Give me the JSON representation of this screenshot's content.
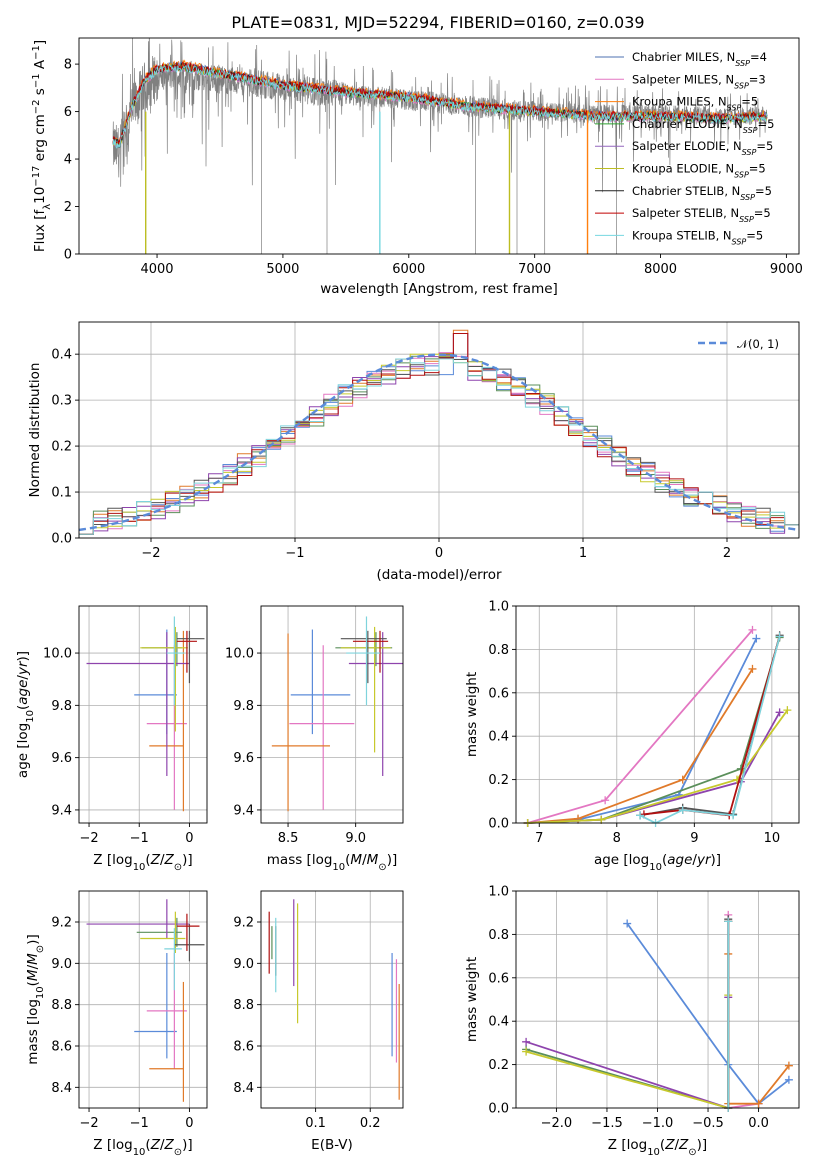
{
  "figure": {
    "title": "PLATE=0831, MJD=52294, FIBERID=0160, z=0.039"
  },
  "colors": {
    "data": "#808080",
    "model_palette": [
      "#4c72b0",
      "#e377c2",
      "#ff7f0e",
      "#2ca02c",
      "#9467bd",
      "#bcbd22",
      "#222222",
      "#c00000",
      "#76d7e0"
    ],
    "line_palette": [
      "#5b8bd9",
      "#e377c2",
      "#e07a2a",
      "#5a8f5a",
      "#8e44ad",
      "#c7c92d",
      "#555555",
      "#b01010",
      "#7fd3dc"
    ]
  },
  "chart_data": [
    {
      "id": "spectrum",
      "type": "line",
      "xlabel": "wavelength [Angstrom, rest frame]",
      "ylabel": "Flux [f_λ 10^-17 erg cm^-2 s^-1 A^-1]",
      "xlim": [
        3380,
        9100
      ],
      "ylim": [
        0,
        9.1
      ],
      "xticks": [
        4000,
        5000,
        6000,
        7000,
        8000,
        9000
      ],
      "yticks": [
        0,
        2,
        4,
        6,
        8
      ],
      "grid": false,
      "legend_position": "top-right",
      "legend": [
        {
          "name": "Chabrier MILES",
          "n": "4"
        },
        {
          "name": "Salpeter MILES",
          "n": "3"
        },
        {
          "name": "Kroupa MILES",
          "n": "5"
        },
        {
          "name": "Chabrier ELODIE",
          "n": "5"
        },
        {
          "name": "Salpeter ELODIE",
          "n": "5"
        },
        {
          "name": "Kroupa ELODIE",
          "n": "5"
        },
        {
          "name": "Chabrier STELIB",
          "n": "5"
        },
        {
          "name": "Salpeter STELIB",
          "n": "5"
        },
        {
          "name": "Kroupa STELIB",
          "n": "5"
        }
      ],
      "model_continuum": {
        "x": [
          3650,
          3700,
          3800,
          3900,
          4000,
          4200,
          4400,
          4600,
          4800,
          5000,
          5200,
          5500,
          6000,
          6500,
          7000,
          7500,
          8000,
          8500,
          8850
        ],
        "y": [
          4.8,
          4.6,
          6.2,
          7.3,
          7.8,
          7.9,
          7.7,
          7.5,
          7.3,
          7.1,
          7.0,
          6.8,
          6.6,
          6.2,
          6.0,
          5.8,
          5.8,
          5.7,
          5.8
        ]
      },
      "data_continuum": {
        "x": [
          3650,
          3700,
          3800,
          3900,
          4000,
          4200,
          4400,
          4600,
          4800,
          5000,
          5200,
          5500,
          6000,
          6500,
          7000,
          7500,
          8000,
          8500,
          8850
        ],
        "y": [
          4.5,
          4.3,
          6.0,
          7.0,
          7.5,
          7.5,
          7.4,
          7.3,
          7.2,
          7.0,
          6.9,
          6.7,
          6.5,
          6.2,
          6.0,
          5.9,
          5.9,
          5.8,
          5.8
        ]
      }
    },
    {
      "id": "residuals",
      "type": "line",
      "xlabel": "(data-model)/error",
      "ylabel": "Normed distribution",
      "xlim": [
        -2.5,
        2.5
      ],
      "ylim": [
        0,
        0.47
      ],
      "xticks": [
        -2,
        -1,
        0,
        1,
        2
      ],
      "yticks": [
        0.0,
        0.1,
        0.2,
        0.3,
        0.4
      ],
      "grid": true,
      "legend_position": "top-right",
      "legend": [
        {
          "name": "𝒩(0, 1)"
        }
      ],
      "gaussian": {
        "mean": 0,
        "sigma": 1
      }
    },
    {
      "id": "age-vs-Z",
      "type": "errorbar",
      "xlabel": "Z [log10(Z/Z⊙)]",
      "ylabel": "age  [log10(age/yr)]",
      "xlim": [
        -2.2,
        0.35
      ],
      "ylim": [
        9.35,
        10.18
      ],
      "xticks": [
        -2,
        -1,
        0
      ],
      "yticks": [
        9.4,
        9.6,
        9.8,
        10.0
      ],
      "grid": true,
      "points": [
        {
          "x": -0.45,
          "y": 9.84,
          "xerr": [
            0.65,
            0.2
          ],
          "yerr": [
            0.15,
            0.25
          ]
        },
        {
          "x": -0.3,
          "y": 9.73,
          "xerr": [
            0.55,
            0.25
          ],
          "yerr": [
            0.33,
            0.3
          ]
        },
        {
          "x": -0.12,
          "y": 9.645,
          "xerr": [
            0.68,
            0.0
          ],
          "yerr": [
            0.25,
            0.44
          ]
        },
        {
          "x": -0.25,
          "y": 10.02,
          "xerr": [
            0.7,
            0.1
          ],
          "yerr": [
            0.07,
            0.06
          ]
        },
        {
          "x": -0.45,
          "y": 9.96,
          "xerr": [
            1.6,
            0.45
          ],
          "yerr": [
            0.43,
            0.12
          ]
        },
        {
          "x": -0.28,
          "y": 10.02,
          "xerr": [
            0.7,
            0.25
          ],
          "yerr": [
            0.32,
            0.08
          ]
        },
        {
          "x": 0.0,
          "y": 10.055,
          "xerr": [
            0.25,
            0.3
          ],
          "yerr": [
            0.17,
            0.03
          ]
        },
        {
          "x": -0.05,
          "y": 10.045,
          "xerr": [
            0.2,
            0.2
          ],
          "yerr": [
            0.12,
            0.04
          ]
        },
        {
          "x": -0.3,
          "y": 10.0,
          "xerr": [
            0.15,
            0.2
          ],
          "yerr": [
            0.2,
            0.14
          ]
        }
      ]
    },
    {
      "id": "age-vs-mass",
      "type": "errorbar",
      "xlabel": "mass [log10(M/M⊙)]",
      "ylabel": "",
      "xlim": [
        8.3,
        9.35
      ],
      "ylim": [
        9.35,
        10.18
      ],
      "xticks": [
        8.5,
        9.0
      ],
      "yticks": [
        9.4,
        9.6,
        9.8,
        10.0
      ],
      "grid": true,
      "points": [
        {
          "x": 8.68,
          "y": 9.84,
          "xerr": [
            0.16,
            0.28
          ],
          "yerr": [
            0.15,
            0.25
          ]
        },
        {
          "x": 8.76,
          "y": 9.73,
          "xerr": [
            0.25,
            0.23
          ],
          "yerr": [
            0.33,
            0.3
          ]
        },
        {
          "x": 8.5,
          "y": 9.645,
          "xerr": [
            0.12,
            0.31
          ],
          "yerr": [
            0.25,
            0.43
          ]
        },
        {
          "x": 9.15,
          "y": 10.02,
          "xerr": [
            0.3,
            0.12
          ],
          "yerr": [
            0.07,
            0.06
          ]
        },
        {
          "x": 9.2,
          "y": 9.96,
          "xerr": [
            0.25,
            0.15
          ],
          "yerr": [
            0.43,
            0.12
          ]
        },
        {
          "x": 9.14,
          "y": 10.02,
          "xerr": [
            0.25,
            0.12
          ],
          "yerr": [
            0.4,
            0.08
          ]
        },
        {
          "x": 9.09,
          "y": 10.055,
          "xerr": [
            0.2,
            0.14
          ],
          "yerr": [
            0.17,
            0.03
          ]
        },
        {
          "x": 9.18,
          "y": 10.045,
          "xerr": [
            0.2,
            0.06
          ],
          "yerr": [
            0.12,
            0.04
          ]
        },
        {
          "x": 9.08,
          "y": 10.0,
          "xerr": [
            0.15,
            0.1
          ],
          "yerr": [
            0.2,
            0.14
          ]
        }
      ]
    },
    {
      "id": "weight-vs-age",
      "type": "line",
      "xlabel": "age  [log10(age/yr)]",
      "ylabel": "mass weight",
      "xlim": [
        6.7,
        10.35
      ],
      "ylim": [
        0,
        1.0
      ],
      "xticks": [
        7,
        8,
        9,
        10
      ],
      "yticks": [
        0.0,
        0.2,
        0.4,
        0.6,
        0.8,
        1.0
      ],
      "grid": true,
      "series": [
        {
          "x": [
            6.85,
            7.5,
            8.8,
            9.8
          ],
          "y": [
            0.0,
            0.015,
            0.13,
            0.85
          ]
        },
        {
          "x": [
            6.85,
            7.85,
            9.75
          ],
          "y": [
            0.0,
            0.105,
            0.89
          ]
        },
        {
          "x": [
            6.85,
            7.5,
            8.85,
            9.75
          ],
          "y": [
            0.0,
            0.02,
            0.2,
            0.71
          ]
        },
        {
          "x": [
            6.85,
            7.8,
            9.6,
            10.1
          ],
          "y": [
            0.0,
            0.015,
            0.25,
            0.855
          ]
        },
        {
          "x": [
            6.85,
            7.8,
            9.6,
            10.1
          ],
          "y": [
            0.0,
            0.015,
            0.19,
            0.51
          ]
        },
        {
          "x": [
            6.85,
            7.8,
            9.55,
            10.2
          ],
          "y": [
            0.0,
            0.015,
            0.2,
            0.52
          ]
        },
        {
          "x": [
            8.3,
            8.85,
            9.5,
            10.1
          ],
          "y": [
            0.035,
            0.07,
            0.04,
            0.865
          ]
        },
        {
          "x": [
            8.35,
            8.85,
            9.45,
            10.1
          ],
          "y": [
            0.04,
            0.06,
            0.035,
            0.86
          ]
        },
        {
          "x": [
            8.3,
            8.5,
            8.85,
            9.5,
            10.1
          ],
          "y": [
            0.035,
            0.0,
            0.06,
            0.035,
            0.86
          ]
        }
      ]
    },
    {
      "id": "mass-vs-Z",
      "type": "errorbar",
      "xlabel": "Z [log10(Z/Z⊙)]",
      "ylabel": "mass [log10(M/M⊙)]",
      "xlim": [
        -2.2,
        0.35
      ],
      "ylim": [
        8.3,
        9.35
      ],
      "xticks": [
        -2,
        -1,
        0
      ],
      "yticks": [
        8.4,
        8.6,
        8.8,
        9.0,
        9.2
      ],
      "grid": true,
      "points": [
        {
          "x": -0.45,
          "y": 8.67,
          "xerr": [
            0.65,
            0.2
          ],
          "yerr": [
            0.13,
            0.38
          ]
        },
        {
          "x": -0.3,
          "y": 8.77,
          "xerr": [
            0.55,
            0.25
          ],
          "yerr": [
            0.28,
            0.28
          ]
        },
        {
          "x": -0.12,
          "y": 8.49,
          "xerr": [
            0.68,
            0.0
          ],
          "yerr": [
            0.16,
            0.42
          ]
        },
        {
          "x": -0.25,
          "y": 9.15,
          "xerr": [
            0.8,
            0.1
          ],
          "yerr": [
            0.07,
            0.07
          ]
        },
        {
          "x": -0.45,
          "y": 9.19,
          "xerr": [
            1.6,
            0.45
          ],
          "yerr": [
            0.07,
            0.12
          ]
        },
        {
          "x": -0.28,
          "y": 9.12,
          "xerr": [
            0.7,
            0.2
          ],
          "yerr": [
            0.07,
            0.13
          ]
        },
        {
          "x": 0.0,
          "y": 9.09,
          "xerr": [
            0.3,
            0.3
          ],
          "yerr": [
            0.08,
            0.1
          ]
        },
        {
          "x": -0.05,
          "y": 9.18,
          "xerr": [
            0.2,
            0.25
          ],
          "yerr": [
            0.12,
            0.06
          ]
        },
        {
          "x": -0.3,
          "y": 9.07,
          "xerr": [
            0.2,
            0.15
          ],
          "yerr": [
            0.2,
            0.1
          ]
        }
      ]
    },
    {
      "id": "mass-vs-ebv",
      "type": "errorbar",
      "xlabel": "E(B-V)",
      "ylabel": "",
      "xlim": [
        0.0,
        0.26
      ],
      "ylim": [
        8.3,
        9.35
      ],
      "xticks": [
        0.1,
        0.2
      ],
      "yticks": [
        8.4,
        8.6,
        8.8,
        9.0,
        9.2
      ],
      "grid": true,
      "points": [
        {
          "x": 0.24,
          "y": 8.8,
          "xerr": [
            0,
            0
          ],
          "yerr": [
            0.25,
            0.25
          ]
        },
        {
          "x": 0.248,
          "y": 8.77,
          "xerr": [
            0,
            0
          ],
          "yerr": [
            0.25,
            0.25
          ]
        },
        {
          "x": 0.253,
          "y": 8.62,
          "xerr": [
            0,
            0
          ],
          "yerr": [
            0.28,
            0.28
          ]
        },
        {
          "x": 0.02,
          "y": 9.1,
          "xerr": [
            0,
            0
          ],
          "yerr": [
            0.08,
            0.08
          ]
        },
        {
          "x": 0.06,
          "y": 9.1,
          "xerr": [
            0,
            0
          ],
          "yerr": [
            0.21,
            0.21
          ]
        },
        {
          "x": 0.067,
          "y": 9.0,
          "xerr": [
            0,
            0
          ],
          "yerr": [
            0.29,
            0.29
          ]
        },
        {
          "x": 0.027,
          "y": 9.06,
          "xerr": [
            0,
            0
          ],
          "yerr": [
            0.12,
            0.12
          ]
        },
        {
          "x": 0.015,
          "y": 9.1,
          "xerr": [
            0,
            0
          ],
          "yerr": [
            0.15,
            0.15
          ]
        },
        {
          "x": 0.027,
          "y": 9.04,
          "xerr": [
            0,
            0
          ],
          "yerr": [
            0.18,
            0.18
          ]
        }
      ]
    },
    {
      "id": "weight-vs-Z",
      "type": "line",
      "xlabel": "Z [log10(Z/Z⊙)]",
      "ylabel": "mass weight",
      "xlim": [
        -2.4,
        0.4
      ],
      "ylim": [
        0,
        1.0
      ],
      "xticks": [
        -2.0,
        -1.5,
        -1.0,
        -0.5,
        0.0
      ],
      "yticks": [
        0.0,
        0.2,
        0.4,
        0.6,
        0.8,
        1.0
      ],
      "grid": true,
      "series": [
        {
          "x": [
            -1.3,
            -0.3,
            0.0,
            0.3
          ],
          "y": [
            0.85,
            0.2,
            0.02,
            0.13
          ]
        },
        {
          "x": [
            -0.3,
            -0.3,
            0.0
          ],
          "y": [
            0.89,
            0.0,
            0.02
          ]
        },
        {
          "x": [
            -0.3,
            -0.3,
            0.0,
            0.3
          ],
          "y": [
            0.71,
            0.02,
            0.02,
            0.195
          ]
        },
        {
          "x": [
            -2.3,
            -0.3,
            -0.3
          ],
          "y": [
            0.27,
            0.0,
            0.86
          ]
        },
        {
          "x": [
            -2.3,
            -0.3,
            -0.3
          ],
          "y": [
            0.305,
            0.0,
            0.51
          ]
        },
        {
          "x": [
            -2.3,
            -0.3,
            -0.3
          ],
          "y": [
            0.26,
            0.0,
            0.52
          ]
        },
        {
          "x": [
            -0.3,
            -0.3
          ],
          "y": [
            0.0,
            0.87
          ]
        },
        {
          "x": [
            -0.3,
            -0.3
          ],
          "y": [
            0.0,
            0.86
          ]
        },
        {
          "x": [
            -0.3,
            -0.3
          ],
          "y": [
            0.0,
            0.86
          ]
        }
      ]
    }
  ]
}
